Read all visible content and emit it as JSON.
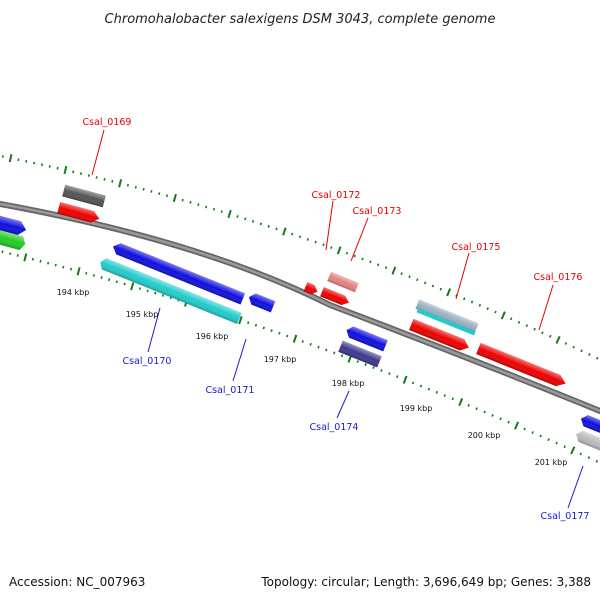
{
  "title": "Chromohalobacter salexigens DSM 3043, complete genome",
  "accession_text": "Accession: NC_007963",
  "summary_text": "Topology: circular; Length: 3,696,649 bp; Genes: 3,388",
  "colors": {
    "backbone": "#7c7c7c",
    "tick": "#157a15",
    "blue": "#1010e0",
    "cyan": "#20cccc",
    "red": "#ee0000",
    "green": "#22cc22",
    "darkgray": "#555555",
    "pink": "#e88080",
    "slate": "#3e3890",
    "lightgray": "#bbbbbb",
    "steel": "#9ab0c0",
    "forward_label": "#e60000",
    "reverse_label": "#1a1ad0"
  },
  "kbp_labels": [
    "194 kbp",
    "195 kbp",
    "196 kbp",
    "197 kbp",
    "198 kbp",
    "199 kbp",
    "200 kbp",
    "201 kbp"
  ],
  "gene_labels": {
    "Csal_0169": "Csal_0169",
    "Csal_0170": "Csal_0170",
    "Csal_0171": "Csal_0171",
    "Csal_0172": "Csal_0172",
    "Csal_0173": "Csal_0173",
    "Csal_0174": "Csal_0174",
    "Csal_0175": "Csal_0175",
    "Csal_0176": "Csal_0176",
    "Csal_0177": "Csal_0177"
  }
}
